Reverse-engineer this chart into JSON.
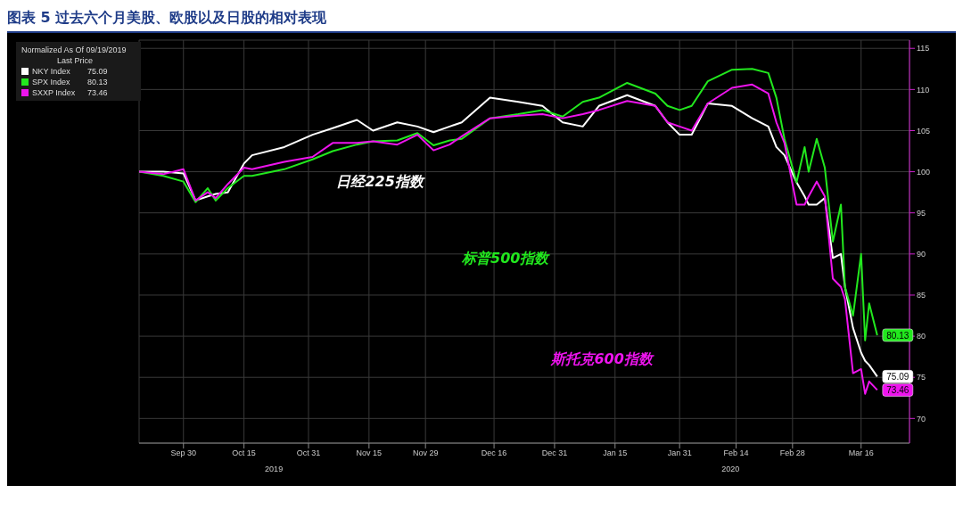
{
  "chart_data": {
    "type": "line",
    "title": "图表 5 过去六个月美股、欧股以及日股的相对表现",
    "legend_title": "Normalized As Of 09/19/2019",
    "annotations": [
      "日经225指数",
      "标普500指数",
      "斯托克600指数",
      "Last Price",
      "2019",
      "2020"
    ],
    "x": [
      "2019-09-19",
      "2019-09-25",
      "2019-09-30",
      "2019-10-03",
      "2019-10-06",
      "2019-10-08",
      "2019-10-11",
      "2019-10-15",
      "2019-10-17",
      "2019-10-25",
      "2019-11-01",
      "2019-11-06",
      "2019-11-12",
      "2019-11-16",
      "2019-11-22",
      "2019-11-27",
      "2019-12-01",
      "2019-12-05",
      "2019-12-08",
      "2019-12-15",
      "2019-12-22",
      "2019-12-28",
      "2020-01-02",
      "2020-01-07",
      "2020-01-11",
      "2020-01-18",
      "2020-01-25",
      "2020-01-28",
      "2020-01-31",
      "2020-02-03",
      "2020-02-07",
      "2020-02-13",
      "2020-02-18",
      "2020-02-22",
      "2020-02-24",
      "2020-02-26",
      "2020-02-29",
      "2020-03-02",
      "2020-03-03",
      "2020-03-05",
      "2020-03-07",
      "2020-03-09",
      "2020-03-11",
      "2020-03-12",
      "2020-03-14",
      "2020-03-16",
      "2020-03-17",
      "2020-03-18",
      "2020-03-20"
    ],
    "series": [
      {
        "name": "NKY Index",
        "color": "#ffffff",
        "values": [
          100,
          100,
          99.8,
          96.5,
          97,
          97.3,
          97.5,
          101,
          102,
          103,
          104.5,
          105.3,
          106.3,
          105,
          106,
          105.5,
          104.8,
          105.5,
          106,
          109,
          108.5,
          108,
          106,
          105.5,
          108,
          109.3,
          108,
          106,
          104.5,
          104.5,
          108.3,
          108,
          106.5,
          105.5,
          103,
          102,
          98.7,
          97,
          96,
          96,
          96.8,
          89.5,
          90,
          86,
          81,
          78,
          77,
          76.5,
          75.09
        ],
        "value_labels": [
          null,
          null,
          null,
          null,
          null,
          null,
          null,
          null,
          null,
          null,
          null,
          null,
          null,
          null,
          null,
          null,
          null,
          null,
          null,
          null,
          null,
          null,
          null,
          null,
          null,
          null,
          null,
          null,
          null,
          null,
          null,
          null,
          null,
          null,
          null,
          null,
          null,
          null,
          null,
          null,
          null,
          null,
          null,
          null,
          null,
          null,
          null,
          null,
          "75.09"
        ]
      },
      {
        "name": "SPX Index",
        "color": "#22e81e",
        "values": [
          100,
          99.5,
          98.8,
          96.3,
          98,
          96.5,
          98,
          99.5,
          99.5,
          100.3,
          101.5,
          102.5,
          103.3,
          103.7,
          103.8,
          104.7,
          103.2,
          103.8,
          104,
          106.5,
          107,
          107.5,
          106.7,
          108.5,
          109,
          110.8,
          109.5,
          108,
          107.5,
          108,
          111,
          112.4,
          112.5,
          112,
          109,
          104,
          98.7,
          103,
          100,
          104,
          100.5,
          91.5,
          96,
          86,
          82.5,
          90,
          79.5,
          84,
          80.13
        ],
        "value_labels": [
          null,
          null,
          null,
          null,
          null,
          null,
          null,
          null,
          null,
          null,
          null,
          null,
          null,
          null,
          null,
          null,
          null,
          null,
          null,
          null,
          null,
          null,
          null,
          null,
          null,
          null,
          null,
          null,
          null,
          null,
          null,
          null,
          null,
          null,
          null,
          null,
          null,
          null,
          null,
          null,
          null,
          null,
          null,
          null,
          null,
          null,
          null,
          null,
          "80.13"
        ]
      },
      {
        "name": "SXXP Index",
        "color": "#ee14ee",
        "values": [
          100,
          99.7,
          100.3,
          96.5,
          97.5,
          96.8,
          98.5,
          100.5,
          100.3,
          101.2,
          101.8,
          103.5,
          103.5,
          103.7,
          103.3,
          104.5,
          102.6,
          103.3,
          104.3,
          106.5,
          106.8,
          107,
          106.5,
          107,
          107.5,
          108.6,
          108,
          106,
          105.5,
          105,
          108.3,
          110.2,
          110.6,
          109.5,
          106,
          103.5,
          96,
          96,
          97,
          98.8,
          97,
          87,
          86,
          84.5,
          75.5,
          76,
          73,
          74.5,
          73.46
        ],
        "value_labels": [
          null,
          null,
          null,
          null,
          null,
          null,
          null,
          null,
          null,
          null,
          null,
          null,
          null,
          null,
          null,
          null,
          null,
          null,
          null,
          null,
          null,
          null,
          null,
          null,
          null,
          null,
          null,
          null,
          null,
          null,
          null,
          null,
          null,
          null,
          null,
          null,
          null,
          null,
          null,
          null,
          null,
          null,
          null,
          null,
          null,
          null,
          null,
          null,
          "73.46"
        ]
      }
    ],
    "xlim": [
      "2019-09-19",
      "2020-03-28"
    ],
    "xticks": [
      {
        "value": "2019-09-30",
        "label": "Sep 30"
      },
      {
        "value": "2019-10-15",
        "label": "Oct 15"
      },
      {
        "value": "2019-10-31",
        "label": "Oct 31"
      },
      {
        "value": "2019-11-15",
        "label": "Nov 15"
      },
      {
        "value": "2019-11-29",
        "label": "Nov 29"
      },
      {
        "value": "2019-12-16",
        "label": "Dec 16"
      },
      {
        "value": "2019-12-31",
        "label": "Dec 31"
      },
      {
        "value": "2020-01-15",
        "label": "Jan 15"
      },
      {
        "value": "2020-01-31",
        "label": "Jan 31"
      },
      {
        "value": "2020-02-14",
        "label": "Feb 14"
      },
      {
        "value": "2020-02-28",
        "label": "Feb 28"
      },
      {
        "value": "2020-03-16",
        "label": "Mar 16"
      }
    ],
    "ylim": [
      67,
      116
    ],
    "yticks": [
      70,
      75,
      80,
      85,
      90,
      95,
      100,
      105,
      110,
      115
    ],
    "grid": true,
    "legend": "top left",
    "marker": "none",
    "line_style": "solid"
  }
}
